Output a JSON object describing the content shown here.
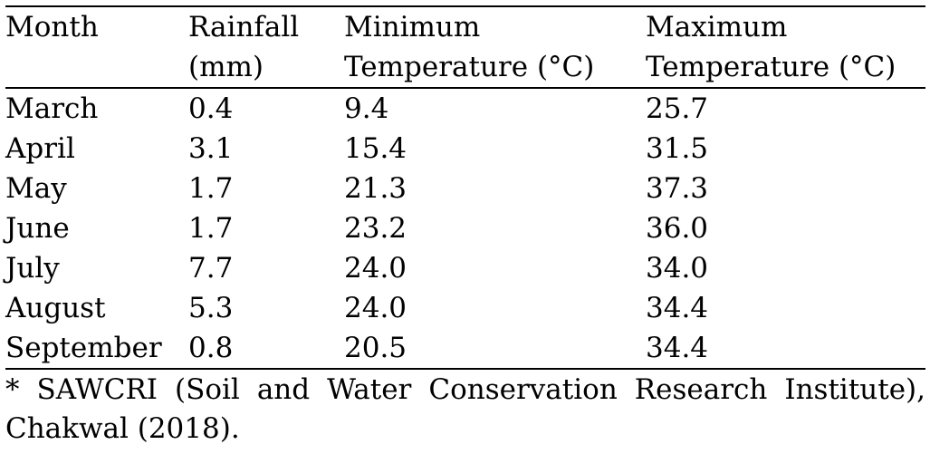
{
  "table": {
    "headers": [
      [
        "Month"
      ],
      [
        "Rainfall",
        "(mm)"
      ],
      [
        "Minimum",
        "Temperature (°C)"
      ],
      [
        "Maximum",
        "Temperature (°C)"
      ]
    ],
    "rows": [
      [
        "March",
        "0.4",
        "9.4",
        "25.7"
      ],
      [
        "April",
        "3.1",
        "15.4",
        "31.5"
      ],
      [
        "May",
        "1.7",
        "21.3",
        "37.3"
      ],
      [
        "June",
        "1.7",
        "23.2",
        "36.0"
      ],
      [
        "July",
        "7.7",
        "24.0",
        "34.0"
      ],
      [
        "August",
        "5.3",
        "24.0",
        "34.4"
      ],
      [
        "September",
        "0.8",
        "20.5",
        "34.4"
      ]
    ]
  },
  "footnote": "* SAWCRI (Soil and Water Conservation Research Institute), Chakwal (2018)."
}
